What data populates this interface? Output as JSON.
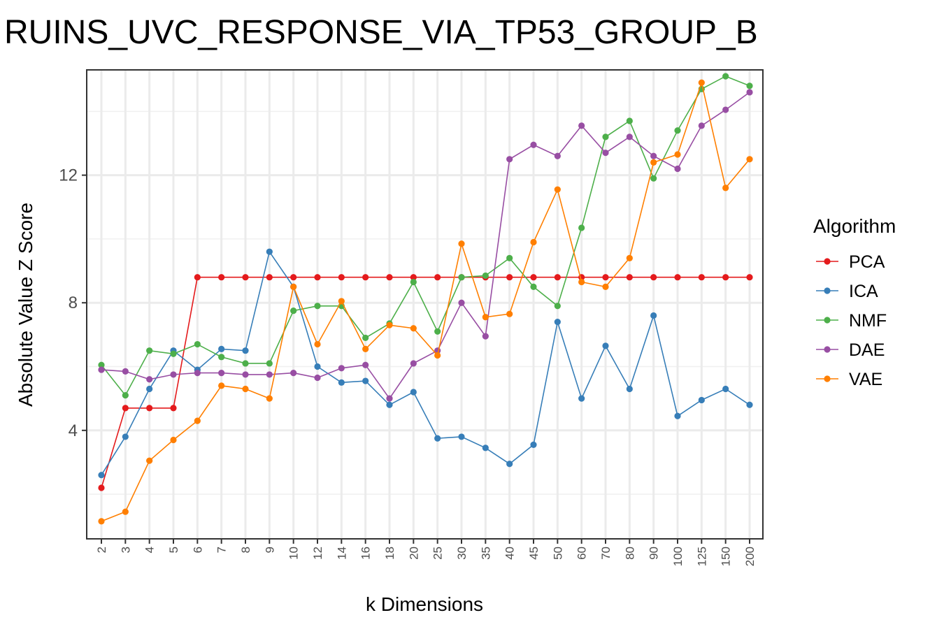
{
  "chart_data": {
    "type": "line",
    "title": "RUINS_UVC_RESPONSE_VIA_TP53_GROUP_B",
    "xlabel": "k Dimensions",
    "ylabel": "Absolute Value Z Score",
    "categories": [
      "2",
      "3",
      "4",
      "5",
      "6",
      "7",
      "8",
      "9",
      "10",
      "12",
      "14",
      "16",
      "18",
      "20",
      "25",
      "30",
      "35",
      "40",
      "45",
      "50",
      "60",
      "70",
      "80",
      "90",
      "100",
      "125",
      "150",
      "200"
    ],
    "yticks": [
      4,
      8,
      12
    ],
    "ylim": [
      0.6,
      15.3
    ],
    "grid": true,
    "legend_title": "Algorithm",
    "legend_position": "right",
    "series": [
      {
        "name": "PCA",
        "color": "#e41a1c",
        "values": [
          2.2,
          4.7,
          4.7,
          4.7,
          8.8,
          8.8,
          8.8,
          8.8,
          8.8,
          8.8,
          8.8,
          8.8,
          8.8,
          8.8,
          8.8,
          8.8,
          8.8,
          8.8,
          8.8,
          8.8,
          8.8,
          8.8,
          8.8,
          8.8,
          8.8,
          8.8,
          8.8,
          8.8
        ]
      },
      {
        "name": "ICA",
        "color": "#377eb8",
        "values": [
          2.6,
          3.8,
          5.3,
          6.5,
          5.9,
          6.55,
          6.5,
          9.6,
          8.5,
          6.0,
          5.5,
          5.55,
          4.8,
          5.2,
          3.75,
          3.8,
          3.45,
          2.95,
          3.55,
          7.4,
          5.0,
          6.65,
          5.3,
          7.6,
          4.45,
          4.95,
          5.3,
          4.8
        ]
      },
      {
        "name": "NMF",
        "color": "#4daf4a",
        "values": [
          6.05,
          5.1,
          6.5,
          6.4,
          6.7,
          6.3,
          6.1,
          6.1,
          7.75,
          7.9,
          7.9,
          6.9,
          7.35,
          8.65,
          7.1,
          8.8,
          8.85,
          9.4,
          8.5,
          7.9,
          10.35,
          13.2,
          13.7,
          11.9,
          13.4,
          14.7,
          15.1,
          14.8
        ]
      },
      {
        "name": "DAE",
        "color": "#984ea3",
        "values": [
          5.9,
          5.85,
          5.6,
          5.75,
          5.8,
          5.8,
          5.75,
          5.75,
          5.8,
          5.65,
          5.95,
          6.05,
          5.0,
          6.1,
          6.5,
          8.0,
          6.95,
          12.5,
          12.95,
          12.6,
          13.55,
          12.7,
          13.2,
          12.6,
          12.2,
          13.55,
          14.05,
          14.6
        ]
      },
      {
        "name": "VAE",
        "color": "#ff7f00",
        "values": [
          1.15,
          1.45,
          3.05,
          3.7,
          4.3,
          5.4,
          5.3,
          5.0,
          8.5,
          6.7,
          8.05,
          6.55,
          7.3,
          7.2,
          6.35,
          9.85,
          7.55,
          7.65,
          9.9,
          11.55,
          8.65,
          8.5,
          9.4,
          12.4,
          12.65,
          14.9,
          11.6,
          12.5
        ]
      }
    ]
  }
}
